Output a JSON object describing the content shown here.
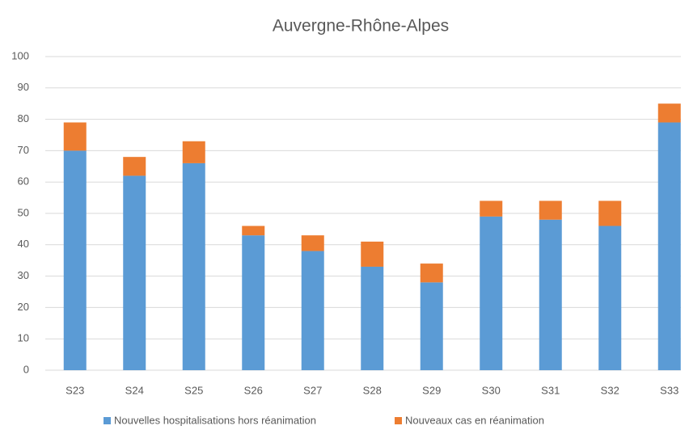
{
  "chart_data": {
    "type": "stacked_bar",
    "title": "Auvergne-Rhône-Alpes",
    "categories": [
      "S23",
      "S24",
      "S25",
      "S26",
      "S27",
      "S28",
      "S29",
      "S30",
      "S31",
      "S32",
      "S33"
    ],
    "series": [
      {
        "name": "Nouvelles hospitalisations hors réanimation",
        "color": "#5b9bd5",
        "values": [
          70,
          62,
          66,
          43,
          38,
          33,
          28,
          49,
          48,
          46,
          79
        ]
      },
      {
        "name": "Nouveaux cas en réanimation",
        "color": "#ed7d31",
        "values": [
          9,
          6,
          7,
          3,
          5,
          8,
          6,
          5,
          6,
          8,
          6
        ]
      }
    ],
    "ylim": [
      0,
      100
    ],
    "yticks": [
      0,
      10,
      20,
      30,
      40,
      50,
      60,
      70,
      80,
      90,
      100
    ],
    "grid": true,
    "legend": "bottom"
  }
}
